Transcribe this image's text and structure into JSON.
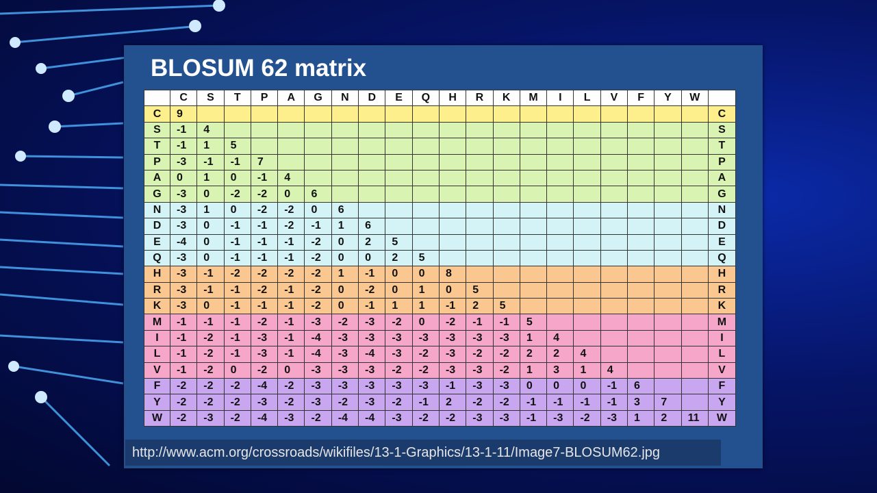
{
  "title": "BLOSUM 62 matrix",
  "table": {
    "columns": [
      "C",
      "S",
      "T",
      "P",
      "A",
      "G",
      "N",
      "D",
      "E",
      "Q",
      "H",
      "R",
      "K",
      "M",
      "I",
      "L",
      "V",
      "F",
      "Y",
      "W"
    ],
    "rows": [
      {
        "label": "C",
        "values": [
          9
        ]
      },
      {
        "label": "S",
        "values": [
          -1,
          4
        ]
      },
      {
        "label": "T",
        "values": [
          -1,
          1,
          5
        ]
      },
      {
        "label": "P",
        "values": [
          -3,
          -1,
          -1,
          7
        ]
      },
      {
        "label": "A",
        "values": [
          0,
          1,
          0,
          -1,
          4
        ]
      },
      {
        "label": "G",
        "values": [
          -3,
          0,
          -2,
          -2,
          0,
          6
        ]
      },
      {
        "label": "N",
        "values": [
          -3,
          1,
          0,
          -2,
          -2,
          0,
          6
        ]
      },
      {
        "label": "D",
        "values": [
          -3,
          0,
          -1,
          -1,
          -2,
          -1,
          1,
          6
        ]
      },
      {
        "label": "E",
        "values": [
          -4,
          0,
          -1,
          -1,
          -1,
          -2,
          0,
          2,
          5
        ]
      },
      {
        "label": "Q",
        "values": [
          -3,
          0,
          -1,
          -1,
          -1,
          -2,
          0,
          0,
          2,
          5
        ]
      },
      {
        "label": "H",
        "values": [
          -3,
          -1,
          -2,
          -2,
          -2,
          -2,
          1,
          -1,
          0,
          0,
          8
        ]
      },
      {
        "label": "R",
        "values": [
          -3,
          -1,
          -1,
          -2,
          -1,
          -2,
          0,
          -2,
          0,
          1,
          0,
          5
        ]
      },
      {
        "label": "K",
        "values": [
          -3,
          0,
          -1,
          -1,
          -1,
          -2,
          0,
          -1,
          1,
          1,
          -1,
          2,
          5
        ]
      },
      {
        "label": "M",
        "values": [
          -1,
          -1,
          -1,
          -2,
          -1,
          -3,
          -2,
          -3,
          -2,
          0,
          -2,
          -1,
          -1,
          5
        ]
      },
      {
        "label": "I",
        "values": [
          -1,
          -2,
          -1,
          -3,
          -1,
          -4,
          -3,
          -3,
          -3,
          -3,
          -3,
          -3,
          -3,
          1,
          4
        ]
      },
      {
        "label": "L",
        "values": [
          -1,
          -2,
          -1,
          -3,
          -1,
          -4,
          -3,
          -4,
          -3,
          -2,
          -3,
          -2,
          -2,
          2,
          2,
          4
        ]
      },
      {
        "label": "V",
        "values": [
          -1,
          -2,
          0,
          -2,
          0,
          -3,
          -3,
          -3,
          -2,
          -2,
          -3,
          -3,
          -2,
          1,
          3,
          1,
          4
        ]
      },
      {
        "label": "F",
        "values": [
          -2,
          -2,
          -2,
          -4,
          -2,
          -3,
          -3,
          -3,
          -3,
          -3,
          -1,
          -3,
          -3,
          0,
          0,
          0,
          -1,
          6
        ]
      },
      {
        "label": "Y",
        "values": [
          -2,
          -2,
          -2,
          -3,
          -2,
          -3,
          -2,
          -3,
          -2,
          -1,
          2,
          -2,
          -2,
          -1,
          -1,
          -1,
          -1,
          3,
          7
        ]
      },
      {
        "label": "W",
        "values": [
          -2,
          -3,
          -2,
          -4,
          -3,
          -2,
          -4,
          -4,
          -3,
          -2,
          -2,
          -3,
          -3,
          -1,
          -3,
          -2,
          -3,
          1,
          2,
          11
        ]
      }
    ]
  },
  "source_url": "http://www.acm.org/crossroads/wikifiles/13-1-Graphics/13-1-11/Image7-BLOSUM62.jpg"
}
